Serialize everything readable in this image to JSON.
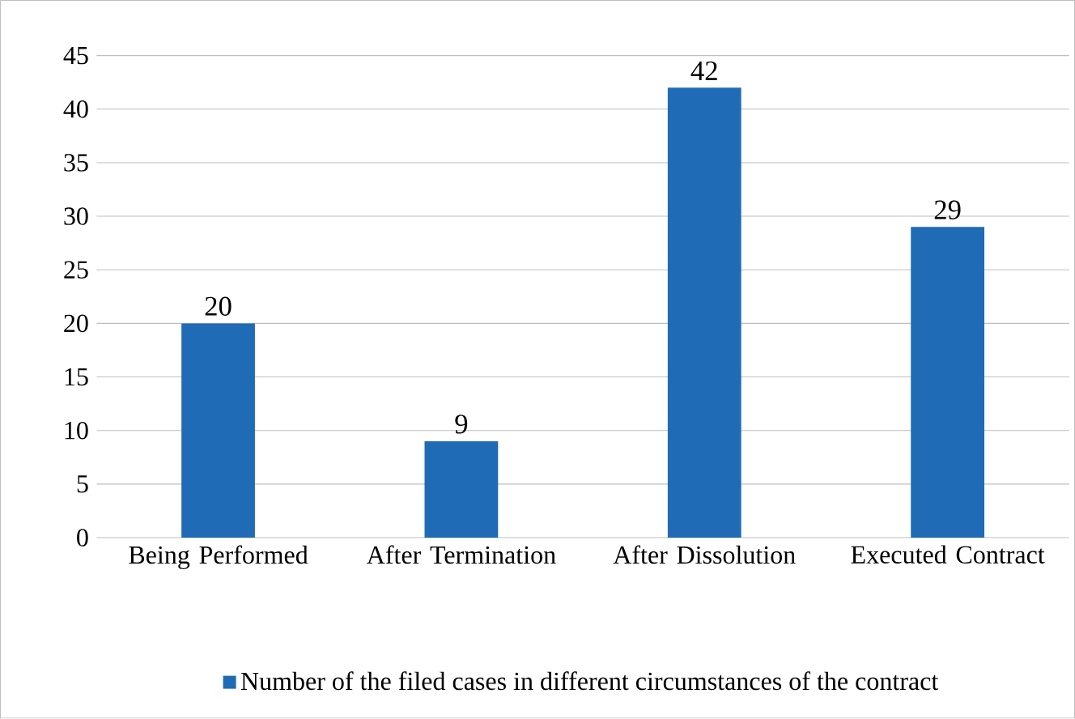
{
  "chart_data": {
    "type": "bar",
    "categories": [
      "Being Performed",
      "After Termination",
      "After Dissolution",
      "Executed Contract"
    ],
    "series": [
      {
        "name": "Number of the filed cases in different circumstances of the contract",
        "color": "#1f6bb5",
        "values": [
          20,
          9,
          42,
          29
        ]
      }
    ],
    "ylim": [
      0,
      45
    ],
    "yticks": [
      0,
      5,
      10,
      15,
      20,
      25,
      30,
      35,
      40,
      45
    ],
    "grid": "y",
    "legend": "bottom",
    "data_labels": true
  }
}
